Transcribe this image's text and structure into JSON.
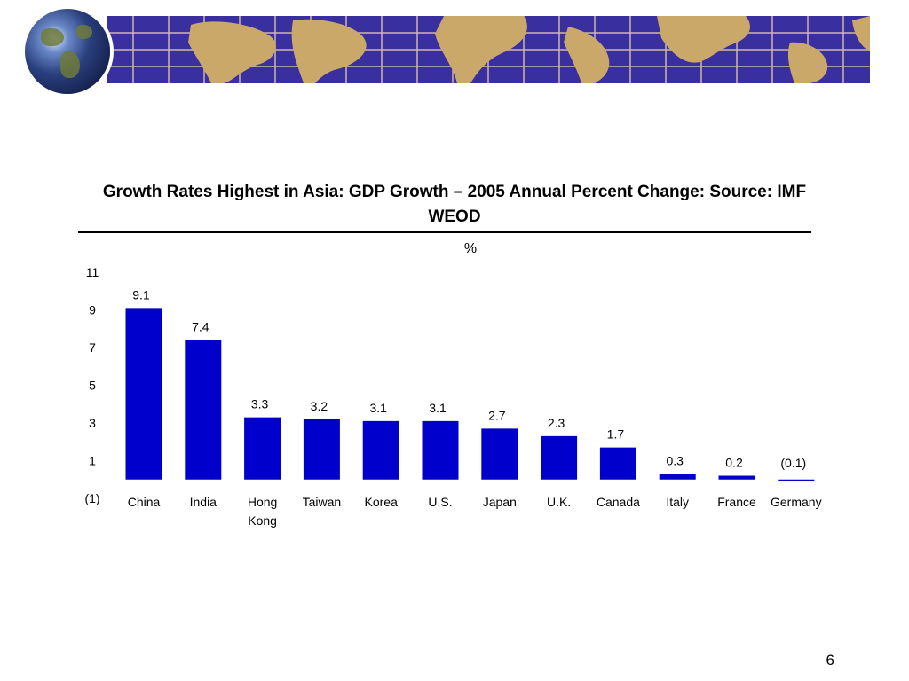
{
  "page_number": "6",
  "chart_data": {
    "type": "bar",
    "title": "Growth Rates Highest in Asia: GDP Growth – 2005 Annual Percent Change: Source: IMF WEOD",
    "unit_label": "%",
    "categories": [
      "China",
      "India",
      "Hong Kong",
      "Taiwan",
      "Korea",
      "U.S.",
      "Japan",
      "U.K.",
      "Canada",
      "Italy",
      "France",
      "Germany"
    ],
    "values": [
      9.1,
      7.4,
      3.3,
      3.2,
      3.1,
      3.1,
      2.7,
      2.3,
      1.7,
      0.3,
      0.2,
      -0.1
    ],
    "value_labels": [
      "9.1",
      "7.4",
      "3.3",
      "3.2",
      "3.1",
      "3.1",
      "2.7",
      "2.3",
      "1.7",
      "0.3",
      "0.2",
      "(0.1)"
    ],
    "y_ticks": [
      11,
      9,
      7,
      5,
      3,
      1,
      -1
    ],
    "y_tick_labels": [
      "11",
      "9",
      "7",
      "5",
      "3",
      "1",
      "(1)"
    ],
    "ylim": [
      -1,
      11
    ],
    "xlabel": "",
    "ylabel": "",
    "grid": false,
    "bar_color": "#0000cc"
  }
}
